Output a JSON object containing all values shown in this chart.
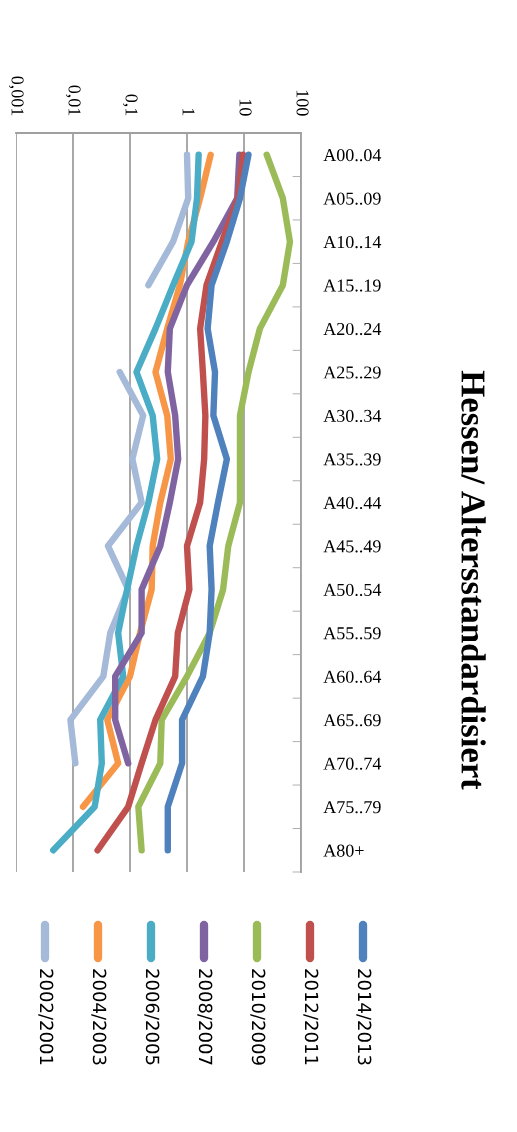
{
  "chart_data": {
    "type": "line",
    "title": "Hessen/ Altersstandardisiert",
    "orientation": "horizontal",
    "log": "x",
    "grid": "x",
    "legend": "bottom",
    "categories": [
      "A00..04",
      "A05..09",
      "A10..14",
      "A15..19",
      "A20..24",
      "A25..29",
      "A30..34",
      "A35..39",
      "A40..44",
      "A45..49",
      "A50..54",
      "A55..59",
      "A60..64",
      "A65..69",
      "A70..74",
      "A75..79",
      "A80+"
    ],
    "xlim": [
      0.001,
      100
    ],
    "xticks": [
      {
        "value": 0.001,
        "label": "0,001"
      },
      {
        "value": 0.01,
        "label": "0,01"
      },
      {
        "value": 0.1,
        "label": "0,1"
      },
      1,
      10,
      100
    ],
    "series": [
      {
        "name": "2002/2001",
        "color": "#a5b9d8",
        "values": [
          1.0,
          1.05,
          0.57,
          0.21,
          null,
          0.066,
          0.17,
          0.11,
          0.16,
          0.041,
          0.093,
          0.045,
          0.034,
          0.009,
          0.011,
          null,
          null
        ]
      },
      {
        "name": "2004/2003",
        "color": "#f79646",
        "values": [
          2.6,
          1.7,
          1.05,
          0.75,
          0.45,
          0.28,
          0.45,
          0.52,
          0.34,
          0.25,
          0.24,
          0.15,
          0.1,
          0.04,
          0.062,
          0.015,
          null
        ]
      },
      {
        "name": "2006/2005",
        "color": "#4bacc6",
        "values": [
          1.6,
          1.5,
          1.2,
          0.57,
          0.28,
          0.13,
          0.25,
          0.3,
          0.21,
          0.13,
          0.089,
          0.062,
          0.076,
          0.03,
          0.032,
          0.024,
          0.0045
        ]
      },
      {
        "name": "2008/2007",
        "color": "#8064a2",
        "values": [
          8.3,
          7.6,
          2.9,
          1.0,
          0.5,
          0.46,
          0.62,
          0.7,
          0.5,
          0.34,
          0.16,
          0.16,
          0.055,
          0.055,
          0.093,
          null,
          null
        ]
      },
      {
        "name": "2010/2009",
        "color": "#9bbb59",
        "values": [
          25,
          48,
          64,
          48,
          19,
          12,
          8.5,
          8.5,
          8.5,
          5.3,
          4.3,
          2.5,
          1.0,
          0.36,
          0.34,
          0.14,
          0.16
        ]
      },
      {
        "name": "2012/2011",
        "color": "#c0504d",
        "values": [
          9.6,
          7.8,
          4.1,
          2.2,
          1.7,
          1.9,
          2.1,
          2.0,
          1.7,
          1.0,
          1.1,
          0.69,
          0.62,
          0.28,
          0.16,
          0.093,
          0.027
        ]
      },
      {
        "name": "2014/2013",
        "color": "#4f81bd",
        "values": [
          12,
          8.5,
          5.0,
          2.7,
          2.3,
          3.1,
          2.9,
          5.0,
          3.5,
          2.5,
          2.7,
          2.5,
          1.9,
          0.82,
          0.82,
          0.46,
          0.46
        ]
      }
    ]
  }
}
